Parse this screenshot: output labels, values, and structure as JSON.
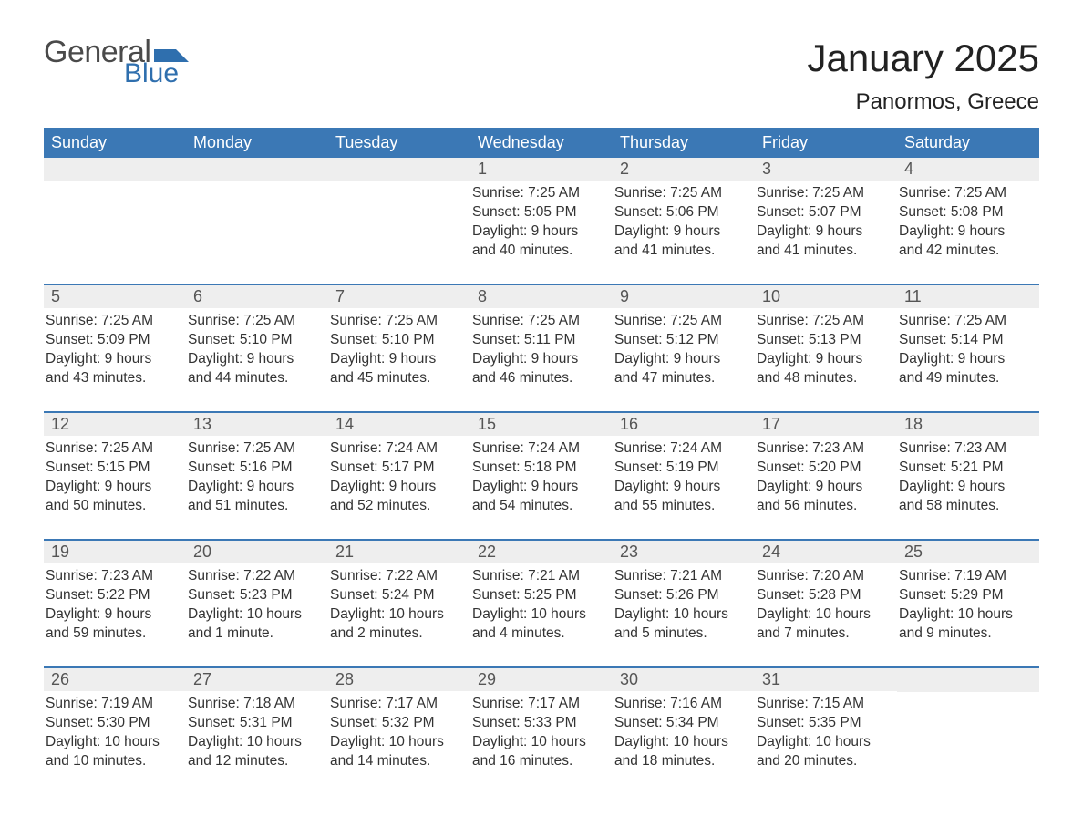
{
  "logo": {
    "word1": "General",
    "word2": "Blue",
    "accent_color": "#2f6fae",
    "text_color": "#4a4a4a"
  },
  "header": {
    "title": "January 2025",
    "location": "Panormos, Greece"
  },
  "colors": {
    "header_bg": "#3b78b5",
    "header_text": "#ffffff",
    "daynum_bg": "#eeeeee",
    "border": "#3b78b5"
  },
  "weekdays": [
    "Sunday",
    "Monday",
    "Tuesday",
    "Wednesday",
    "Thursday",
    "Friday",
    "Saturday"
  ],
  "weeks": [
    [
      {
        "blank": true
      },
      {
        "blank": true
      },
      {
        "blank": true
      },
      {
        "n": "1",
        "sunrise": "Sunrise: 7:25 AM",
        "sunset": "Sunset: 5:05 PM",
        "day1": "Daylight: 9 hours",
        "day2": "and 40 minutes."
      },
      {
        "n": "2",
        "sunrise": "Sunrise: 7:25 AM",
        "sunset": "Sunset: 5:06 PM",
        "day1": "Daylight: 9 hours",
        "day2": "and 41 minutes."
      },
      {
        "n": "3",
        "sunrise": "Sunrise: 7:25 AM",
        "sunset": "Sunset: 5:07 PM",
        "day1": "Daylight: 9 hours",
        "day2": "and 41 minutes."
      },
      {
        "n": "4",
        "sunrise": "Sunrise: 7:25 AM",
        "sunset": "Sunset: 5:08 PM",
        "day1": "Daylight: 9 hours",
        "day2": "and 42 minutes."
      }
    ],
    [
      {
        "n": "5",
        "sunrise": "Sunrise: 7:25 AM",
        "sunset": "Sunset: 5:09 PM",
        "day1": "Daylight: 9 hours",
        "day2": "and 43 minutes."
      },
      {
        "n": "6",
        "sunrise": "Sunrise: 7:25 AM",
        "sunset": "Sunset: 5:10 PM",
        "day1": "Daylight: 9 hours",
        "day2": "and 44 minutes."
      },
      {
        "n": "7",
        "sunrise": "Sunrise: 7:25 AM",
        "sunset": "Sunset: 5:10 PM",
        "day1": "Daylight: 9 hours",
        "day2": "and 45 minutes."
      },
      {
        "n": "8",
        "sunrise": "Sunrise: 7:25 AM",
        "sunset": "Sunset: 5:11 PM",
        "day1": "Daylight: 9 hours",
        "day2": "and 46 minutes."
      },
      {
        "n": "9",
        "sunrise": "Sunrise: 7:25 AM",
        "sunset": "Sunset: 5:12 PM",
        "day1": "Daylight: 9 hours",
        "day2": "and 47 minutes."
      },
      {
        "n": "10",
        "sunrise": "Sunrise: 7:25 AM",
        "sunset": "Sunset: 5:13 PM",
        "day1": "Daylight: 9 hours",
        "day2": "and 48 minutes."
      },
      {
        "n": "11",
        "sunrise": "Sunrise: 7:25 AM",
        "sunset": "Sunset: 5:14 PM",
        "day1": "Daylight: 9 hours",
        "day2": "and 49 minutes."
      }
    ],
    [
      {
        "n": "12",
        "sunrise": "Sunrise: 7:25 AM",
        "sunset": "Sunset: 5:15 PM",
        "day1": "Daylight: 9 hours",
        "day2": "and 50 minutes."
      },
      {
        "n": "13",
        "sunrise": "Sunrise: 7:25 AM",
        "sunset": "Sunset: 5:16 PM",
        "day1": "Daylight: 9 hours",
        "day2": "and 51 minutes."
      },
      {
        "n": "14",
        "sunrise": "Sunrise: 7:24 AM",
        "sunset": "Sunset: 5:17 PM",
        "day1": "Daylight: 9 hours",
        "day2": "and 52 minutes."
      },
      {
        "n": "15",
        "sunrise": "Sunrise: 7:24 AM",
        "sunset": "Sunset: 5:18 PM",
        "day1": "Daylight: 9 hours",
        "day2": "and 54 minutes."
      },
      {
        "n": "16",
        "sunrise": "Sunrise: 7:24 AM",
        "sunset": "Sunset: 5:19 PM",
        "day1": "Daylight: 9 hours",
        "day2": "and 55 minutes."
      },
      {
        "n": "17",
        "sunrise": "Sunrise: 7:23 AM",
        "sunset": "Sunset: 5:20 PM",
        "day1": "Daylight: 9 hours",
        "day2": "and 56 minutes."
      },
      {
        "n": "18",
        "sunrise": "Sunrise: 7:23 AM",
        "sunset": "Sunset: 5:21 PM",
        "day1": "Daylight: 9 hours",
        "day2": "and 58 minutes."
      }
    ],
    [
      {
        "n": "19",
        "sunrise": "Sunrise: 7:23 AM",
        "sunset": "Sunset: 5:22 PM",
        "day1": "Daylight: 9 hours",
        "day2": "and 59 minutes."
      },
      {
        "n": "20",
        "sunrise": "Sunrise: 7:22 AM",
        "sunset": "Sunset: 5:23 PM",
        "day1": "Daylight: 10 hours",
        "day2": "and 1 minute."
      },
      {
        "n": "21",
        "sunrise": "Sunrise: 7:22 AM",
        "sunset": "Sunset: 5:24 PM",
        "day1": "Daylight: 10 hours",
        "day2": "and 2 minutes."
      },
      {
        "n": "22",
        "sunrise": "Sunrise: 7:21 AM",
        "sunset": "Sunset: 5:25 PM",
        "day1": "Daylight: 10 hours",
        "day2": "and 4 minutes."
      },
      {
        "n": "23",
        "sunrise": "Sunrise: 7:21 AM",
        "sunset": "Sunset: 5:26 PM",
        "day1": "Daylight: 10 hours",
        "day2": "and 5 minutes."
      },
      {
        "n": "24",
        "sunrise": "Sunrise: 7:20 AM",
        "sunset": "Sunset: 5:28 PM",
        "day1": "Daylight: 10 hours",
        "day2": "and 7 minutes."
      },
      {
        "n": "25",
        "sunrise": "Sunrise: 7:19 AM",
        "sunset": "Sunset: 5:29 PM",
        "day1": "Daylight: 10 hours",
        "day2": "and 9 minutes."
      }
    ],
    [
      {
        "n": "26",
        "sunrise": "Sunrise: 7:19 AM",
        "sunset": "Sunset: 5:30 PM",
        "day1": "Daylight: 10 hours",
        "day2": "and 10 minutes."
      },
      {
        "n": "27",
        "sunrise": "Sunrise: 7:18 AM",
        "sunset": "Sunset: 5:31 PM",
        "day1": "Daylight: 10 hours",
        "day2": "and 12 minutes."
      },
      {
        "n": "28",
        "sunrise": "Sunrise: 7:17 AM",
        "sunset": "Sunset: 5:32 PM",
        "day1": "Daylight: 10 hours",
        "day2": "and 14 minutes."
      },
      {
        "n": "29",
        "sunrise": "Sunrise: 7:17 AM",
        "sunset": "Sunset: 5:33 PM",
        "day1": "Daylight: 10 hours",
        "day2": "and 16 minutes."
      },
      {
        "n": "30",
        "sunrise": "Sunrise: 7:16 AM",
        "sunset": "Sunset: 5:34 PM",
        "day1": "Daylight: 10 hours",
        "day2": "and 18 minutes."
      },
      {
        "n": "31",
        "sunrise": "Sunrise: 7:15 AM",
        "sunset": "Sunset: 5:35 PM",
        "day1": "Daylight: 10 hours",
        "day2": "and 20 minutes."
      },
      {
        "blank": true
      }
    ]
  ]
}
